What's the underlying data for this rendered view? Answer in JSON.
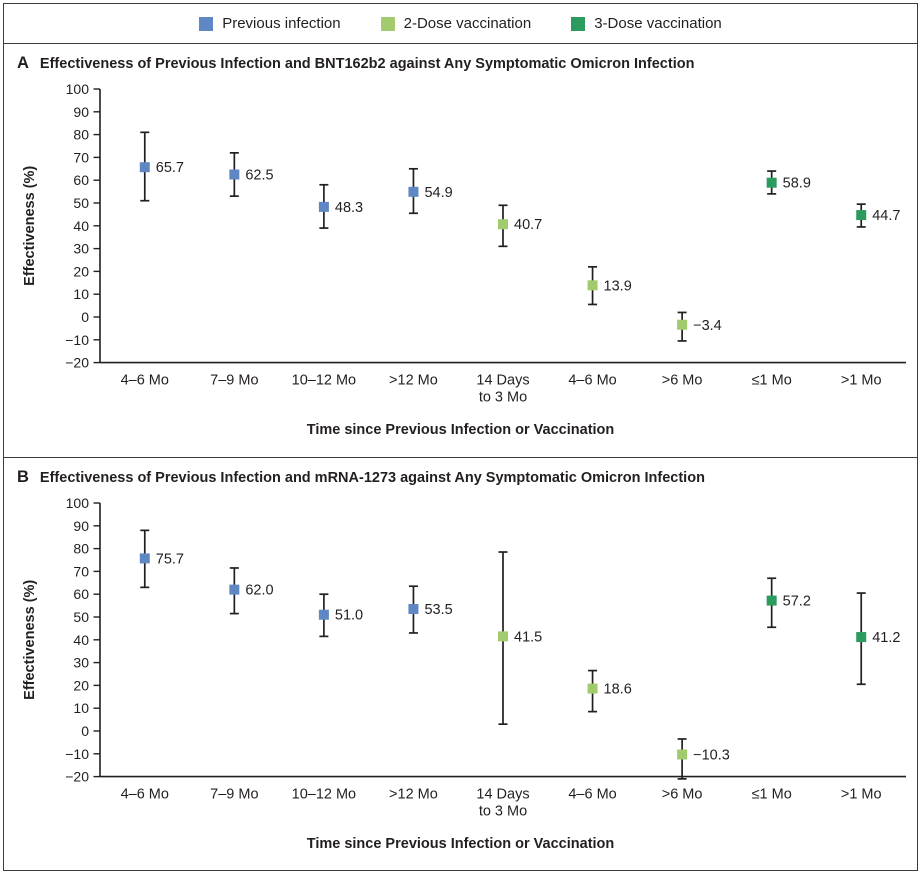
{
  "legend": {
    "items": [
      {
        "label": "Previous infection",
        "color": "#5e87c3"
      },
      {
        "label": "2-Dose vaccination",
        "color": "#a2cb6e"
      },
      {
        "label": "3-Dose vaccination",
        "color": "#2b9c5e"
      }
    ]
  },
  "ink_color": "#231f20",
  "frame_color": "#3c3c3c",
  "chart_data": [
    {
      "type": "scatter",
      "panel": "A",
      "title": "Effectiveness of Previous Infection and BNT162b2 against Any Symptomatic Omicron Infection",
      "ylabel": "Effectiveness (%)",
      "xlabel": "Time since Previous Infection or Vaccination",
      "ylim": [
        -20,
        100
      ],
      "ytick_interval": 10,
      "grid": false,
      "legend_position": "top",
      "categories": [
        "4–6 Mo",
        "7–9 Mo",
        "10–12 Mo",
        ">12 Mo",
        "14 Days\nto 3 Mo",
        "4–6 Mo",
        ">6 Mo",
        "≤1 Mo",
        ">1 Mo"
      ],
      "points": [
        {
          "x": 0,
          "series": "Previous infection",
          "value": 65.7,
          "label": "65.7",
          "ci_low": 51.0,
          "ci_high": 81.0
        },
        {
          "x": 1,
          "series": "Previous infection",
          "value": 62.5,
          "label": "62.5",
          "ci_low": 53.0,
          "ci_high": 72.0
        },
        {
          "x": 2,
          "series": "Previous infection",
          "value": 48.3,
          "label": "48.3",
          "ci_low": 39.0,
          "ci_high": 58.0
        },
        {
          "x": 3,
          "series": "Previous infection",
          "value": 54.9,
          "label": "54.9",
          "ci_low": 45.5,
          "ci_high": 65.0
        },
        {
          "x": 4,
          "series": "2-Dose vaccination",
          "value": 40.7,
          "label": "40.7",
          "ci_low": 31.0,
          "ci_high": 49.0
        },
        {
          "x": 5,
          "series": "2-Dose vaccination",
          "value": 13.9,
          "label": "13.9",
          "ci_low": 5.5,
          "ci_high": 22.0
        },
        {
          "x": 6,
          "series": "2-Dose vaccination",
          "value": -3.4,
          "label": "−3.4",
          "ci_low": -10.5,
          "ci_high": 2.0
        },
        {
          "x": 7,
          "series": "3-Dose vaccination",
          "value": 58.9,
          "label": "58.9",
          "ci_low": 54.0,
          "ci_high": 64.0
        },
        {
          "x": 8,
          "series": "3-Dose vaccination",
          "value": 44.7,
          "label": "44.7",
          "ci_low": 39.5,
          "ci_high": 49.5
        }
      ]
    },
    {
      "type": "scatter",
      "panel": "B",
      "title": "Effectiveness of Previous Infection and mRNA-1273 against Any Symptomatic Omicron Infection",
      "ylabel": "Effectiveness (%)",
      "xlabel": "Time since Previous Infection or Vaccination",
      "ylim": [
        -20,
        100
      ],
      "ytick_interval": 10,
      "grid": false,
      "legend_position": "top",
      "categories": [
        "4–6 Mo",
        "7–9 Mo",
        "10–12 Mo",
        ">12 Mo",
        "14 Days\nto 3 Mo",
        "4–6 Mo",
        ">6 Mo",
        "≤1 Mo",
        ">1 Mo"
      ],
      "points": [
        {
          "x": 0,
          "series": "Previous infection",
          "value": 75.7,
          "label": "75.7",
          "ci_low": 63.0,
          "ci_high": 88.0
        },
        {
          "x": 1,
          "series": "Previous infection",
          "value": 62.0,
          "label": "62.0",
          "ci_low": 51.5,
          "ci_high": 71.5
        },
        {
          "x": 2,
          "series": "Previous infection",
          "value": 51.0,
          "label": "51.0",
          "ci_low": 41.5,
          "ci_high": 60.0
        },
        {
          "x": 3,
          "series": "Previous infection",
          "value": 53.5,
          "label": "53.5",
          "ci_low": 43.0,
          "ci_high": 63.5
        },
        {
          "x": 4,
          "series": "2-Dose vaccination",
          "value": 41.5,
          "label": "41.5",
          "ci_low": 3.0,
          "ci_high": 78.5
        },
        {
          "x": 5,
          "series": "2-Dose vaccination",
          "value": 18.6,
          "label": "18.6",
          "ci_low": 8.5,
          "ci_high": 26.5
        },
        {
          "x": 6,
          "series": "2-Dose vaccination",
          "value": -10.3,
          "label": "−10.3",
          "ci_low": -21.0,
          "ci_high": -3.5
        },
        {
          "x": 7,
          "series": "3-Dose vaccination",
          "value": 57.2,
          "label": "57.2",
          "ci_low": 45.5,
          "ci_high": 67.0
        },
        {
          "x": 8,
          "series": "3-Dose vaccination",
          "value": 41.2,
          "label": "41.2",
          "ci_low": 20.5,
          "ci_high": 60.5
        }
      ]
    }
  ]
}
